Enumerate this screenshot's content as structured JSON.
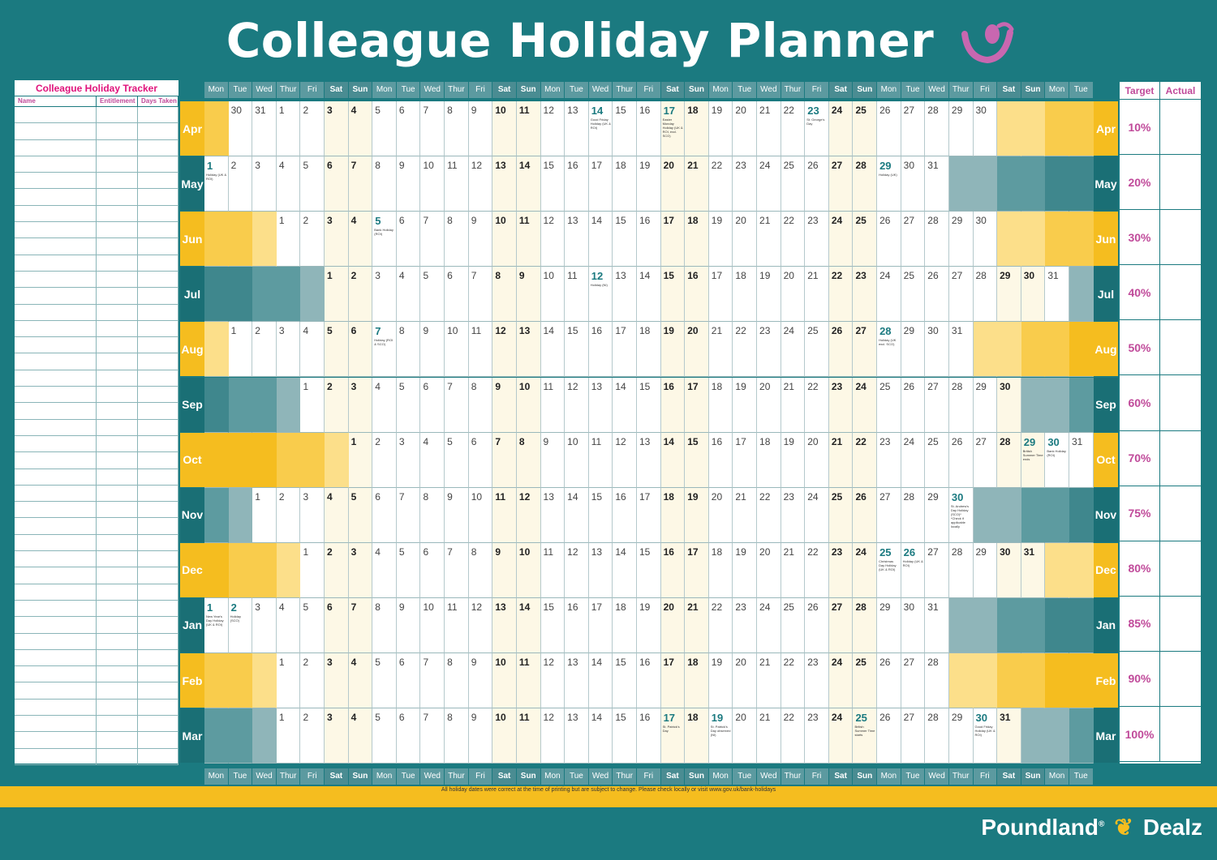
{
  "title": "Colleague Holiday Planner",
  "tracker": {
    "title": "Colleague Holiday Tracker",
    "columns": [
      "Name",
      "Entitlement",
      "Days Taken"
    ],
    "rows": 40
  },
  "days": [
    "Mon",
    "Tue",
    "Wed",
    "Thur",
    "Fri",
    "Sat",
    "Sun",
    "Mon",
    "Tue",
    "Wed",
    "Thur",
    "Fri",
    "Sat",
    "Sun",
    "Mon",
    "Tue",
    "Wed",
    "Thur",
    "Fri",
    "Sat",
    "Sun",
    "Mon",
    "Tue",
    "Wed",
    "Thur",
    "Fri",
    "Sat",
    "Sun",
    "Mon",
    "Tue",
    "Wed",
    "Thur",
    "Fri",
    "Sat",
    "Sun",
    "Mon",
    "Tue"
  ],
  "months": [
    {
      "name": "Apr",
      "start": 3,
      "len": 30,
      "prevTail": [
        30,
        31
      ],
      "target": "10%",
      "holidays": {
        "14": "Good Friday Holiday (UK & ROI)",
        "17": "Easter Monday Holiday (UK & ROI, excl. SCO)",
        "23": "St. George's Day"
      }
    },
    {
      "name": "May",
      "start": 0,
      "len": 31,
      "target": "20%",
      "holidays": {
        "1": "Holiday (UK & ROI)",
        "29": "Holiday (UK)"
      }
    },
    {
      "name": "Jun",
      "start": 3,
      "len": 30,
      "target": "30%",
      "holidays": {
        "5": "Bank Holiday (ROI)"
      }
    },
    {
      "name": "Jul",
      "start": 5,
      "len": 31,
      "target": "40%",
      "holidays": {
        "12": "Holiday (NI)"
      }
    },
    {
      "name": "Aug",
      "start": 1,
      "len": 31,
      "target": "50%",
      "holidays": {
        "7": "Holiday (ROI & SCO)",
        "28": "Holiday (UK excl. SCO)"
      }
    },
    {
      "name": "Sep",
      "start": 4,
      "len": 30,
      "target": "60%",
      "holidays": {}
    },
    {
      "name": "Oct",
      "start": 6,
      "len": 31,
      "target": "70%",
      "holidays": {
        "29": "British Summer Time ends",
        "30": "Bank Holiday (ROI)"
      }
    },
    {
      "name": "Nov",
      "start": 2,
      "len": 30,
      "target": "75%",
      "holidays": {
        "30": "St. Andrew's Day Holiday (SCO)* *Check if applicable locally"
      }
    },
    {
      "name": "Dec",
      "start": 4,
      "len": 31,
      "target": "80%",
      "holidays": {
        "25": "Christmas Day Holiday (UK & ROI)",
        "26": "Holiday (UK & ROI)"
      }
    },
    {
      "name": "Jan",
      "start": 0,
      "len": 31,
      "target": "85%",
      "holidays": {
        "1": "New Year's Day Holiday (UK & ROI)",
        "2": "Holiday (SCO)"
      }
    },
    {
      "name": "Feb",
      "start": 3,
      "len": 28,
      "target": "90%",
      "holidays": {}
    },
    {
      "name": "Mar",
      "start": 3,
      "len": 31,
      "target": "100%",
      "holidays": {
        "17": "St. Patrick's Day",
        "19": "St. Patrick's Day observed (NI)",
        "25": "British Summer Time starts",
        "30": "Good Friday Holiday (UK & ROI)"
      }
    }
  ],
  "targets_header": [
    "Target",
    "Actual"
  ],
  "disclaimer": "All holiday dates were correct at the time of printing but are subject to change. Please check locally or visit www.gov.uk/bank-holidays",
  "brand": {
    "left": "Poundland",
    "reg": "®",
    "right": "Dealz"
  },
  "colors": {
    "teal": "#1b7a80",
    "yellow": "#f5bd1f",
    "pink": "#c04a9a"
  }
}
